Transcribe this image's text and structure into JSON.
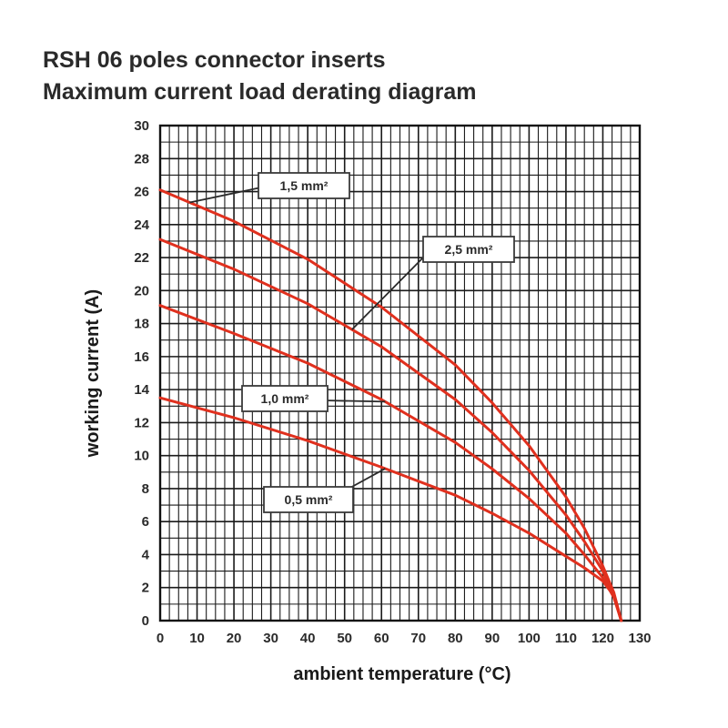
{
  "chart_data": {
    "type": "line",
    "title": "RSH 06 poles connector inserts",
    "subtitle": "Maximum current load derating diagram",
    "xlabel": "ambient temperature (°C)",
    "ylabel": "working current (A)",
    "xlim": [
      0,
      130
    ],
    "ylim": [
      0,
      30
    ],
    "x_ticks": [
      0,
      10,
      20,
      30,
      40,
      50,
      60,
      70,
      80,
      90,
      100,
      110,
      120,
      130
    ],
    "y_ticks": [
      0,
      2,
      4,
      6,
      8,
      10,
      12,
      14,
      16,
      18,
      20,
      22,
      24,
      26,
      28,
      30
    ],
    "grid": true,
    "line_color": "#e0301e",
    "series": [
      {
        "name": "1,5 mm²",
        "x": [
          0,
          20,
          40,
          60,
          80,
          90,
          100,
          110,
          115,
          120,
          123,
          125
        ],
        "y": [
          26.1,
          24.2,
          21.9,
          19.0,
          15.5,
          13.2,
          10.6,
          7.5,
          5.6,
          3.3,
          1.7,
          0
        ]
      },
      {
        "name": "2,5 mm²",
        "x": [
          0,
          20,
          40,
          60,
          80,
          90,
          100,
          110,
          115,
          120,
          123,
          125
        ],
        "y": [
          23.1,
          21.3,
          19.2,
          16.6,
          13.4,
          11.4,
          9.1,
          6.4,
          4.8,
          3.0,
          1.5,
          0
        ]
      },
      {
        "name": "1,0 mm²",
        "x": [
          0,
          20,
          40,
          60,
          80,
          90,
          100,
          110,
          115,
          120,
          123,
          125
        ],
        "y": [
          19.1,
          17.4,
          15.6,
          13.4,
          10.8,
          9.2,
          7.4,
          5.3,
          4.0,
          2.6,
          1.4,
          0
        ]
      },
      {
        "name": "0,5 mm²",
        "x": [
          0,
          20,
          40,
          60,
          80,
          90,
          100,
          110,
          115,
          120,
          123,
          125
        ],
        "y": [
          13.5,
          12.3,
          10.9,
          9.3,
          7.6,
          6.5,
          5.3,
          3.9,
          3.2,
          2.4,
          1.5,
          0
        ]
      }
    ],
    "annotations": [
      {
        "text": "1,5 mm²",
        "series": 0
      },
      {
        "text": "2,5 mm²",
        "series": 1
      },
      {
        "text": "1,0 mm²",
        "series": 2
      },
      {
        "text": "0,5 mm²",
        "series": 3
      }
    ]
  }
}
